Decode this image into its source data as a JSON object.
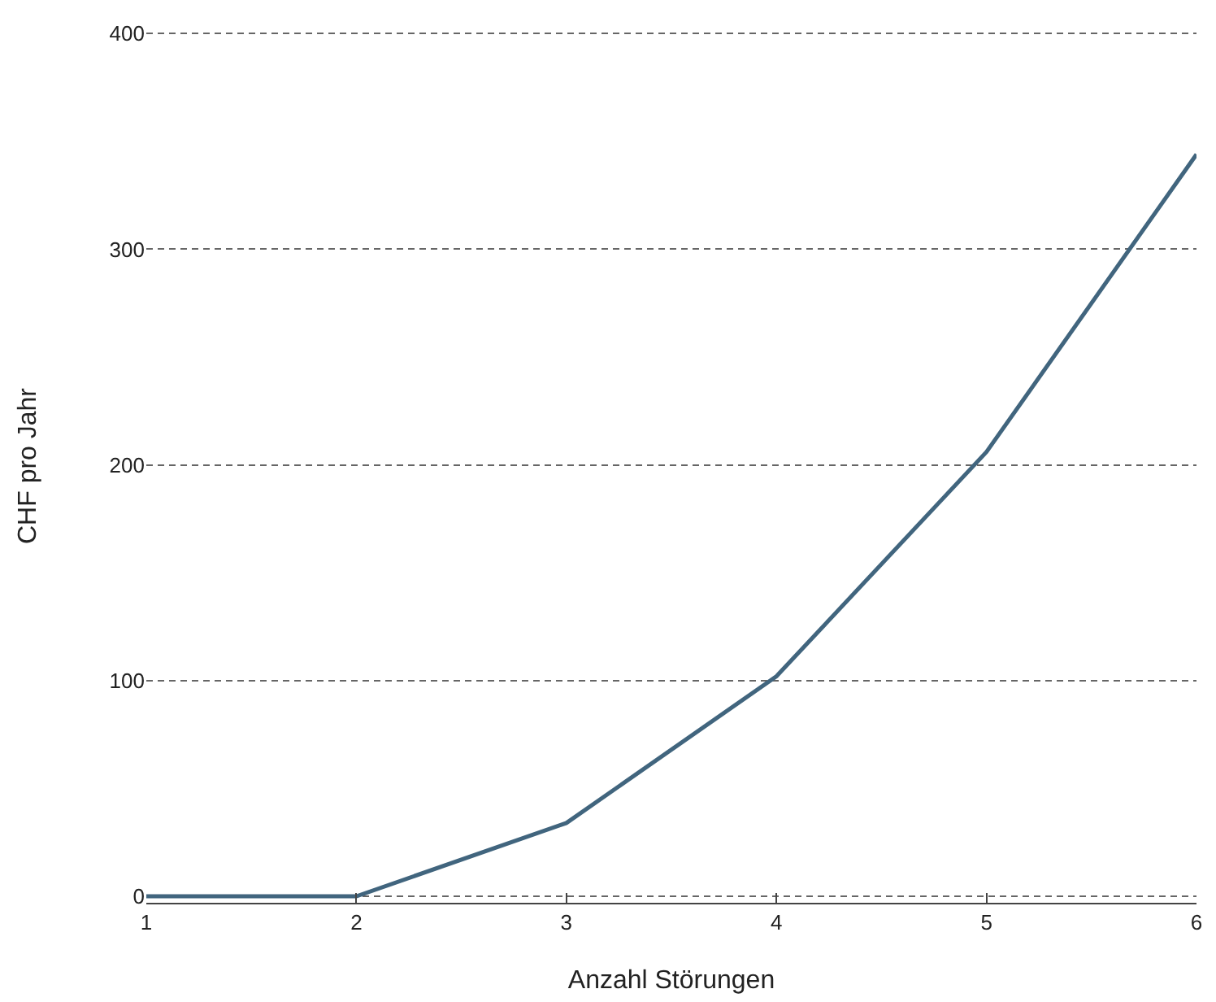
{
  "chart_data": {
    "type": "line",
    "xlabel": "Anzahl Störungen",
    "ylabel": "CHF pro Jahr",
    "x": [
      1,
      2,
      3,
      4,
      5,
      6
    ],
    "series": [
      {
        "color": "#41657e",
        "values": [
          0,
          0,
          34,
          102,
          206,
          344
        ]
      }
    ],
    "xlim": [
      1,
      6
    ],
    "xticks": [
      1,
      2,
      3,
      4,
      5,
      6
    ],
    "ylim": [
      -3,
      402
    ],
    "yticks": [
      0,
      100,
      200,
      300,
      400
    ],
    "grid": "y",
    "line_style": "solid"
  }
}
